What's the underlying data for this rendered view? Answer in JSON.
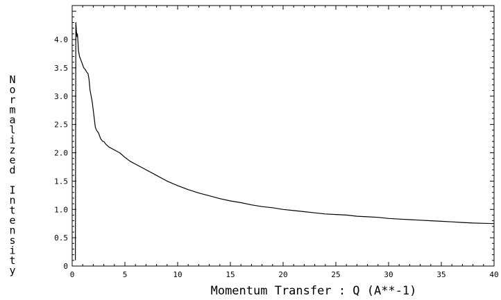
{
  "chart_data": {
    "type": "line",
    "title": "",
    "xlabel": "Momentum Transfer : Q (A**-1)",
    "ylabel": "Normalized Intensity",
    "xlim": [
      0,
      40
    ],
    "ylim": [
      0,
      4.6
    ],
    "xticks": [
      0,
      5,
      10,
      15,
      20,
      25,
      30,
      35,
      40
    ],
    "xtick_labels": [
      "0",
      "5",
      "10",
      "15",
      "20",
      "25",
      "30",
      "35",
      "40"
    ],
    "yticks": [
      0,
      0.5,
      1.0,
      1.5,
      2.0,
      2.5,
      3.0,
      3.5,
      4.0
    ],
    "ytick_labels": [
      "0",
      "0.5",
      "1.0",
      "1.5",
      "2.0",
      "2.5",
      "3.0",
      "3.5",
      "4.0"
    ],
    "grid": false,
    "line_color": "#000000",
    "series": [
      {
        "x": [
          0.3,
          0.35,
          0.4,
          0.45,
          0.5,
          0.55,
          0.6,
          0.7,
          0.8,
          0.9,
          1.0,
          1.1,
          1.2,
          1.3,
          1.4,
          1.5,
          1.6,
          1.7,
          1.8,
          1.9,
          2.0,
          2.1,
          2.2,
          2.3,
          2.5,
          2.7,
          2.9,
          3.0,
          3.2,
          3.5,
          4.0,
          4.5,
          5.0,
          5.5,
          6.0,
          7.0,
          8.0,
          9.0,
          10.0,
          11.0,
          12.0,
          13.0,
          14.0,
          15.0,
          16.0,
          17.0,
          18.0,
          19.0,
          20.0,
          21.0,
          22.0,
          23.0,
          24.0,
          25.0,
          26.0,
          27.0,
          28.0,
          29.0,
          30.0,
          31.0,
          32.0,
          33.0,
          34.0,
          35.0,
          36.0,
          37.0,
          38.0,
          39.0,
          40.0
        ],
        "y": [
          0.1,
          4.3,
          4.15,
          4.05,
          4.1,
          3.95,
          3.8,
          3.7,
          3.65,
          3.6,
          3.55,
          3.5,
          3.48,
          3.45,
          3.42,
          3.4,
          3.3,
          3.1,
          3.0,
          2.9,
          2.75,
          2.6,
          2.45,
          2.4,
          2.35,
          2.25,
          2.2,
          2.2,
          2.15,
          2.1,
          2.05,
          2.0,
          1.92,
          1.85,
          1.8,
          1.7,
          1.6,
          1.5,
          1.42,
          1.35,
          1.29,
          1.24,
          1.19,
          1.15,
          1.12,
          1.08,
          1.05,
          1.03,
          1.0,
          0.98,
          0.96,
          0.94,
          0.92,
          0.91,
          0.9,
          0.88,
          0.87,
          0.86,
          0.84,
          0.83,
          0.82,
          0.81,
          0.8,
          0.79,
          0.78,
          0.77,
          0.76,
          0.755,
          0.75
        ]
      }
    ]
  }
}
